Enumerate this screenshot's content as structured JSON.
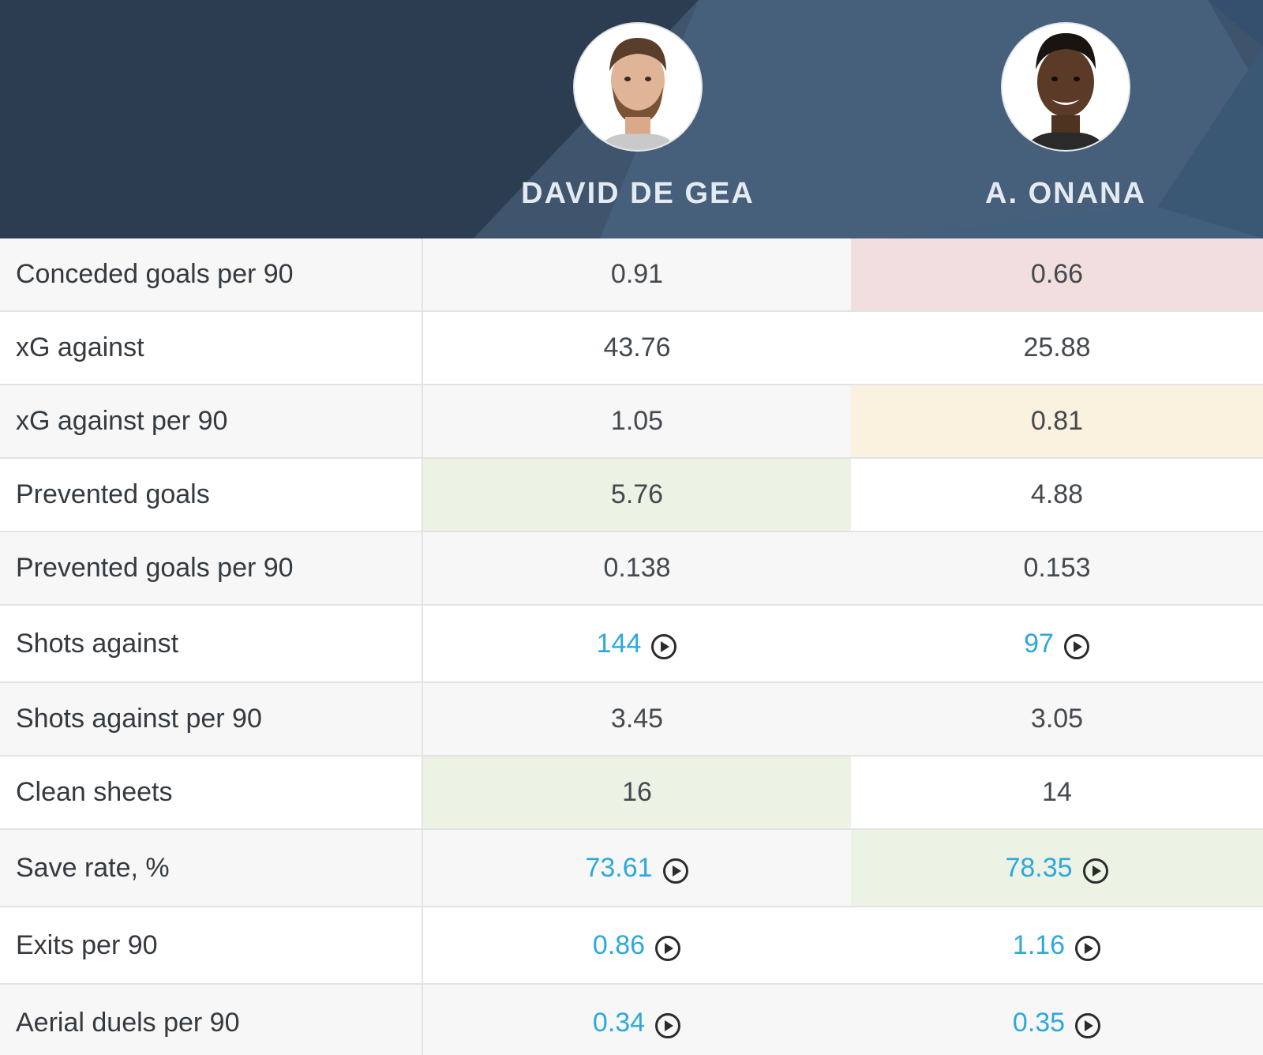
{
  "players": [
    {
      "name": "DAVID DE GEA",
      "photo": "player-photo-de-gea"
    },
    {
      "name": "A. ONANA",
      "photo": "player-photo-onana"
    }
  ],
  "colors": {
    "header_dark": "#2d3d51",
    "header_mid": "#465f7a",
    "link": "#2ea8dc",
    "highlight_red": "#f2dede",
    "highlight_yellow": "#faf1de",
    "highlight_green": "#edf3e4"
  },
  "stats": [
    {
      "label": "Conceded goals per 90",
      "values": [
        "0.91",
        "0.66"
      ],
      "highlight": [
        null,
        "red"
      ],
      "video": [
        false,
        false
      ]
    },
    {
      "label": "xG against",
      "values": [
        "43.76",
        "25.88"
      ],
      "highlight": [
        null,
        null
      ],
      "video": [
        false,
        false
      ]
    },
    {
      "label": "xG against per 90",
      "values": [
        "1.05",
        "0.81"
      ],
      "highlight": [
        null,
        "yellow"
      ],
      "video": [
        false,
        false
      ]
    },
    {
      "label": "Prevented goals",
      "values": [
        "5.76",
        "4.88"
      ],
      "highlight": [
        "green",
        null
      ],
      "video": [
        false,
        false
      ]
    },
    {
      "label": "Prevented goals per 90",
      "values": [
        "0.138",
        "0.153"
      ],
      "highlight": [
        null,
        null
      ],
      "video": [
        false,
        false
      ]
    },
    {
      "label": "Shots against",
      "values": [
        "144",
        "97"
      ],
      "highlight": [
        null,
        null
      ],
      "video": [
        true,
        true
      ]
    },
    {
      "label": "Shots against per 90",
      "values": [
        "3.45",
        "3.05"
      ],
      "highlight": [
        null,
        null
      ],
      "video": [
        false,
        false
      ]
    },
    {
      "label": "Clean sheets",
      "values": [
        "16",
        "14"
      ],
      "highlight": [
        "green",
        null
      ],
      "video": [
        false,
        false
      ]
    },
    {
      "label": "Save rate, %",
      "values": [
        "73.61",
        "78.35"
      ],
      "highlight": [
        null,
        "green"
      ],
      "video": [
        true,
        true
      ]
    },
    {
      "label": "Exits per 90",
      "values": [
        "0.86",
        "1.16"
      ],
      "highlight": [
        null,
        null
      ],
      "video": [
        true,
        true
      ]
    },
    {
      "label": "Aerial duels per 90",
      "values": [
        "0.34",
        "0.35"
      ],
      "highlight": [
        null,
        null
      ],
      "video": [
        true,
        true
      ]
    }
  ],
  "icons": {
    "video": "play-circle-icon"
  }
}
